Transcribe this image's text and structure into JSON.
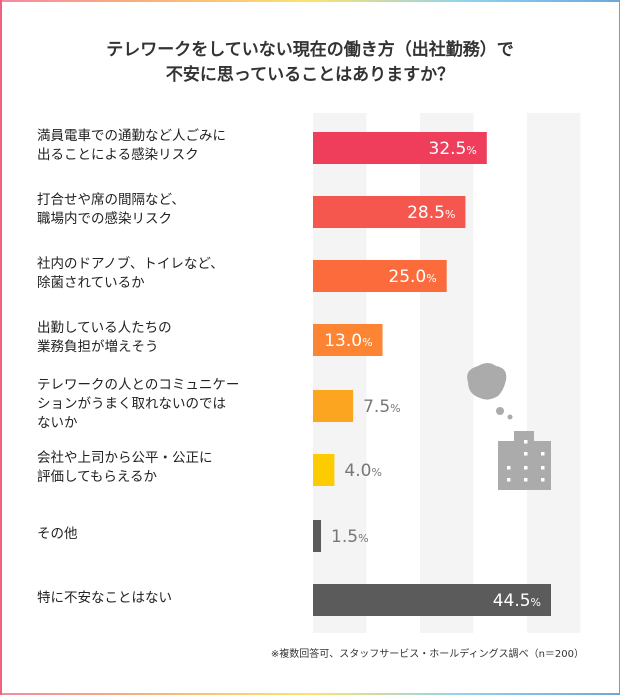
{
  "chart_data": {
    "type": "bar",
    "orientation": "horizontal",
    "title": "テレワークをしていない現在の働き方（出社勤務）で\n不安に思っていることはありますか？",
    "categories": [
      "満員電車での通勤など人ごみに\n出ることによる感染リスク",
      "打合せや席の間隔など、\n職場内での感染リスク",
      "社内のドアノブ、トイレなど、\n除菌されているか",
      "出勤している人たちの\n業務負担が増えそう",
      "テレワークの人とのコミュニケー\nションがうまく取れないのでは\nないか",
      "会社や上司から公平・公正に\n評価してもらえるか",
      "その他",
      "特に不安なことはない"
    ],
    "values": [
      32.5,
      28.5,
      25.0,
      13.0,
      7.5,
      4.0,
      1.5,
      44.5
    ],
    "value_labels": [
      "32.5",
      "28.5",
      "25.0",
      "13.0",
      "7.5",
      "4.0",
      "1.5",
      "44.5"
    ],
    "unit": "%",
    "colors": [
      "#ef3e5c",
      "#f5564e",
      "#fb6b3c",
      "#fd8433",
      "#fca520",
      "#fccc00",
      "#5b5b5b",
      "#5b5b5b"
    ],
    "xlim": [
      0,
      50
    ],
    "grid": "alternating vertical bands every 10%",
    "note": "※複数回答可、スタッフサービス・ホールディングス調べ（n＝200）",
    "decoration": "building-with-thought-bubble-icon"
  }
}
